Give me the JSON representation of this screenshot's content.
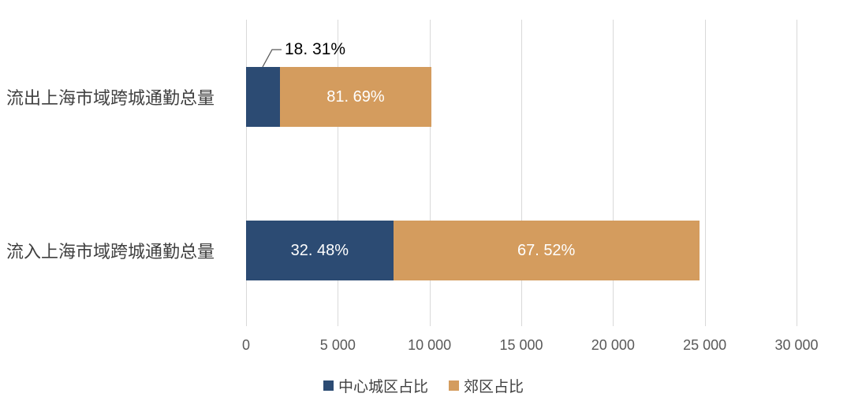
{
  "chart_data": {
    "type": "bar",
    "orientation": "horizontal",
    "stacked": true,
    "title": "",
    "categories": [
      "流出上海市域跨城通勤总量",
      "流入上海市域跨城通勤总量"
    ],
    "series": [
      {
        "key": "center",
        "name": "中心城区占比",
        "color": "#2C4B73",
        "percentages": [
          18.31,
          32.48
        ]
      },
      {
        "key": "suburb",
        "name": "郊区占比",
        "color": "#D49C5E",
        "percentages": [
          81.69,
          67.52
        ]
      }
    ],
    "bars": [
      {
        "category": "流出上海市域跨城通勤总量",
        "total_estimate": 10100,
        "segments": [
          {
            "key": "center",
            "pct": 18.31,
            "label": "18. 31%",
            "label_placement": "callout"
          },
          {
            "key": "suburb",
            "pct": 81.69,
            "label": "81. 69%",
            "label_placement": "inside"
          }
        ]
      },
      {
        "category": "流入上海市域跨城通勤总量",
        "total_estimate": 24700,
        "segments": [
          {
            "key": "center",
            "pct": 32.48,
            "label": "32. 48%",
            "label_placement": "inside"
          },
          {
            "key": "suburb",
            "pct": 67.52,
            "label": "67. 52%",
            "label_placement": "inside"
          }
        ]
      }
    ],
    "x_axis": {
      "ticks": [
        "0",
        "5 000",
        "10 000",
        "15 000",
        "20 000",
        "25 000",
        "30 000"
      ],
      "tick_values": [
        0,
        5000,
        10000,
        15000,
        20000,
        25000,
        30000
      ],
      "xlim": [
        0,
        30000
      ],
      "grid": true
    },
    "legend": {
      "position": "bottom"
    }
  },
  "colors": {
    "background": "#FFFFFF",
    "gridline": "#D9D9D9",
    "category_text": "#404040",
    "axis_text": "#595959",
    "bar_label_text": "#FFFFFF",
    "callout_text": "#000000",
    "leader_line": "#595959"
  }
}
